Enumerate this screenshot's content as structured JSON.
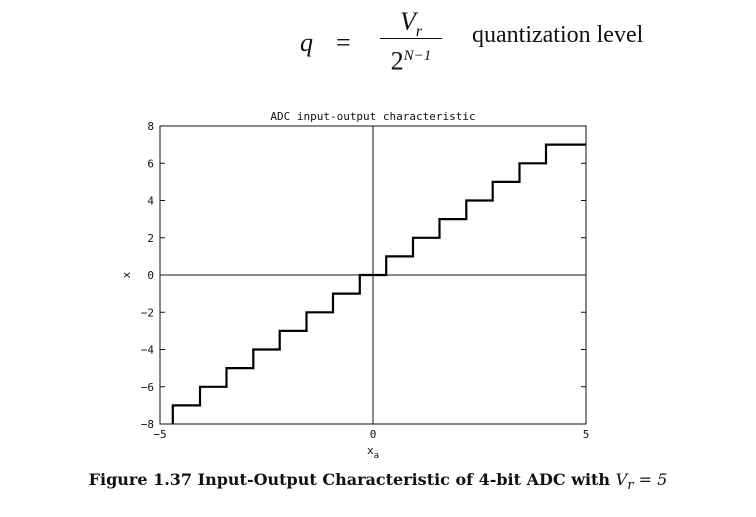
{
  "equation": {
    "lhs": "q",
    "eq": "=",
    "numerator": "V",
    "numerator_sub": "r",
    "denominator": "2",
    "denominator_sup": "N−1",
    "label": "quantization level"
  },
  "chart_data": {
    "type": "line",
    "title": "ADC input-output characteristic",
    "xlabel": "x",
    "xlabel_sub": "a",
    "ylabel": "x",
    "xlim": [
      -5,
      5
    ],
    "ylim": [
      -8,
      8
    ],
    "xticks": [
      -5,
      0,
      5
    ],
    "yticks": [
      -8,
      -6,
      -4,
      -2,
      0,
      2,
      4,
      6,
      8
    ],
    "xtick_labels": [
      "−5",
      "0",
      "5"
    ],
    "ytick_labels": [
      "−8",
      "−6",
      "−4",
      "−2",
      "0",
      "2",
      "4",
      "6",
      "8"
    ],
    "grid": false,
    "reference_lines": {
      "x0": true,
      "y0": true
    },
    "series": [
      {
        "x": [
          -4.7,
          -4.7,
          -4.06,
          -4.06,
          -3.44,
          -3.44,
          -2.81,
          -2.81,
          -2.19,
          -2.19,
          -1.56,
          -1.56,
          -0.94,
          -0.94,
          -0.31,
          -0.31,
          0.31,
          0.31,
          0.94,
          0.94,
          1.56,
          1.56,
          2.19,
          2.19,
          2.81,
          2.81,
          3.44,
          3.44,
          4.06,
          4.06,
          5.0
        ],
        "y": [
          -8,
          -7,
          -7,
          -6,
          -6,
          -5,
          -5,
          -4,
          -4,
          -3,
          -3,
          -2,
          -2,
          -1,
          -1,
          0,
          0,
          1,
          1,
          2,
          2,
          3,
          3,
          4,
          4,
          5,
          5,
          6,
          6,
          7,
          7
        ]
      }
    ]
  },
  "caption": {
    "text": "Figure 1.37 Input-Output Characteristic of 4-bit ADC with ",
    "vr": "V",
    "vr_sub": "r",
    "vr_rest": " = 5"
  }
}
